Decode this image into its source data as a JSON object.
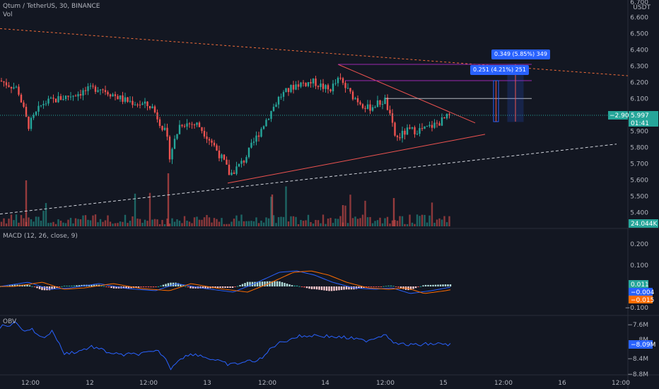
{
  "header": {
    "symbol": "Qtum / TetherUS, 30, BINANCE",
    "vol_label": "Vol"
  },
  "price_axis": {
    "currency": "USDT",
    "top_partial": "6.700",
    "ticks": [
      "6.600",
      "6.500",
      "6.400",
      "6.300",
      "6.200",
      "6.100",
      "5.900",
      "5.800",
      "5.700",
      "5.600",
      "5.500",
      "5.400"
    ],
    "current_price": "5.997",
    "countdown": "01:41",
    "change_pct": "−2.90%",
    "volume_badge": "24.044K"
  },
  "macd": {
    "label": "MACD (12, 26, close, 9)",
    "ticks": [
      "0.200",
      "0.100",
      "−0.100"
    ],
    "hist_badge": "0.011",
    "macd_badge": "−0.004",
    "signal_badge": "−0.015"
  },
  "obv": {
    "label": "OBV",
    "ticks": [
      "−7.6M",
      "−8.4M",
      "−8.8M"
    ],
    "partial_tick": "8M",
    "badge": "−8.09M"
  },
  "time_axis": {
    "labels": [
      "12:00",
      "12",
      "12:00",
      "13",
      "12:00",
      "14",
      "12:00",
      "15",
      "12:00",
      "16",
      "12:00"
    ]
  },
  "annotations": {
    "measure_small": "0.251 (4.21%) 251",
    "measure_large": "0.349 (5.85%) 349"
  },
  "colors": {
    "background": "#131722",
    "up": "#26a69a",
    "down": "#ef5350",
    "macd_line": "#2962ff",
    "signal_line": "#ff6d00",
    "obv_line": "#2962ff",
    "accent_blue": "#2962ff",
    "measure_box": "#1e88e5"
  }
}
